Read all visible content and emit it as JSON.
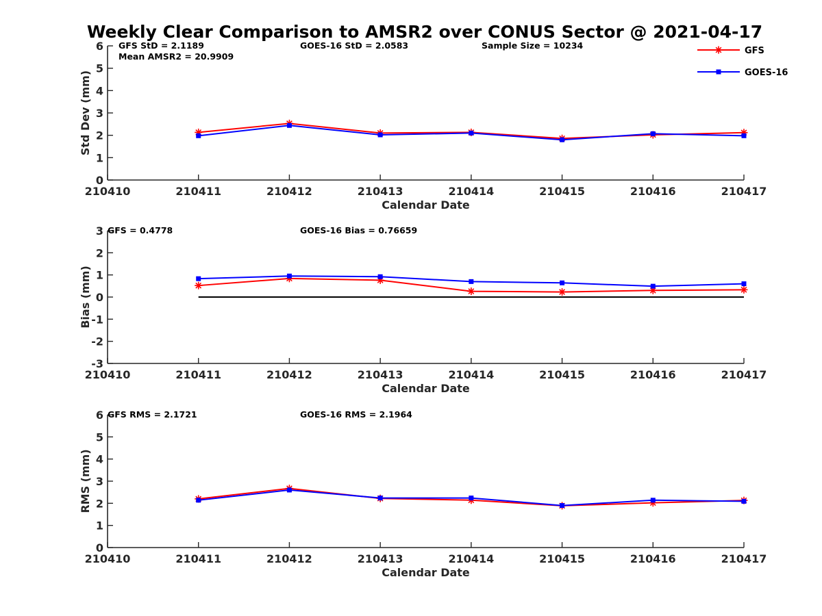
{
  "title": "Weekly Clear Comparison to AMSR2 over CONUS Sector @ 2021-04-17",
  "legend": {
    "placement": "top-right",
    "entries": [
      {
        "name": "GFS",
        "color": "#ff0000",
        "marker": "asterisk"
      },
      {
        "name": "GOES-16",
        "color": "#0000ff",
        "marker": "square"
      }
    ]
  },
  "colors": {
    "gfs": "#ff0000",
    "goes16": "#0000ff",
    "zero_line": "#000000",
    "axis": "#262626"
  },
  "chart_data": [
    {
      "type": "line",
      "xlabel": "Calendar Date",
      "ylabel": "Std Dev (mm)",
      "xticks": [
        "210410",
        "210411",
        "210412",
        "210413",
        "210414",
        "210415",
        "210416",
        "210417"
      ],
      "x": [
        "210411",
        "210412",
        "210413",
        "210414",
        "210415",
        "210416",
        "210417"
      ],
      "ylim": [
        0,
        6
      ],
      "yticks": [
        "0",
        "1",
        "2",
        "3",
        "4",
        "5",
        "6"
      ],
      "zero_line": false,
      "annotations": [
        {
          "key": "gfs",
          "text": "GFS StD = 2.1189"
        },
        {
          "key": "mean",
          "text": "Mean AMSR2 = 20.9909"
        },
        {
          "key": "goes",
          "text": "GOES-16 StD = 2.0583"
        },
        {
          "key": "sample",
          "text": "Sample Size = 10234"
        }
      ],
      "series": [
        {
          "name": "GFS",
          "values": [
            2.13,
            2.53,
            2.1,
            2.13,
            1.86,
            2.02,
            2.12
          ]
        },
        {
          "name": "GOES-16",
          "values": [
            1.98,
            2.44,
            2.02,
            2.1,
            1.8,
            2.07,
            1.98
          ]
        }
      ]
    },
    {
      "type": "line",
      "xlabel": "Calendar Date",
      "ylabel": "Bias (mm)",
      "xticks": [
        "210410",
        "210411",
        "210412",
        "210413",
        "210414",
        "210415",
        "210416",
        "210417"
      ],
      "x": [
        "210411",
        "210412",
        "210413",
        "210414",
        "210415",
        "210416",
        "210417"
      ],
      "ylim": [
        -3,
        3
      ],
      "yticks": [
        "-3",
        "-2",
        "-1",
        "0",
        "1",
        "2",
        "3"
      ],
      "zero_line": true,
      "annotations": [
        {
          "key": "gfs",
          "text": "GFS = 0.4778"
        },
        {
          "key": "goes",
          "text": "GOES-16 Bias  = 0.76659"
        }
      ],
      "series": [
        {
          "name": "GFS",
          "values": [
            0.52,
            0.84,
            0.76,
            0.26,
            0.23,
            0.3,
            0.33
          ]
        },
        {
          "name": "GOES-16",
          "values": [
            0.83,
            0.95,
            0.92,
            0.7,
            0.64,
            0.49,
            0.6
          ]
        }
      ]
    },
    {
      "type": "line",
      "xlabel": "Calendar Date",
      "ylabel": "RMS (mm)",
      "xticks": [
        "210410",
        "210411",
        "210412",
        "210413",
        "210414",
        "210415",
        "210416",
        "210417"
      ],
      "x": [
        "210411",
        "210412",
        "210413",
        "210414",
        "210415",
        "210416",
        "210417"
      ],
      "ylim": [
        0,
        6
      ],
      "yticks": [
        "0",
        "1",
        "2",
        "3",
        "4",
        "5",
        "6"
      ],
      "zero_line": false,
      "annotations": [
        {
          "key": "gfs",
          "text": "GFS RMS = 2.1721"
        },
        {
          "key": "goes",
          "text": "GOES-16 RMS = 2.1964"
        }
      ],
      "series": [
        {
          "name": "GFS",
          "values": [
            2.2,
            2.67,
            2.22,
            2.14,
            1.89,
            2.02,
            2.13
          ]
        },
        {
          "name": "GOES-16",
          "values": [
            2.14,
            2.6,
            2.24,
            2.24,
            1.9,
            2.14,
            2.09
          ]
        }
      ]
    }
  ]
}
